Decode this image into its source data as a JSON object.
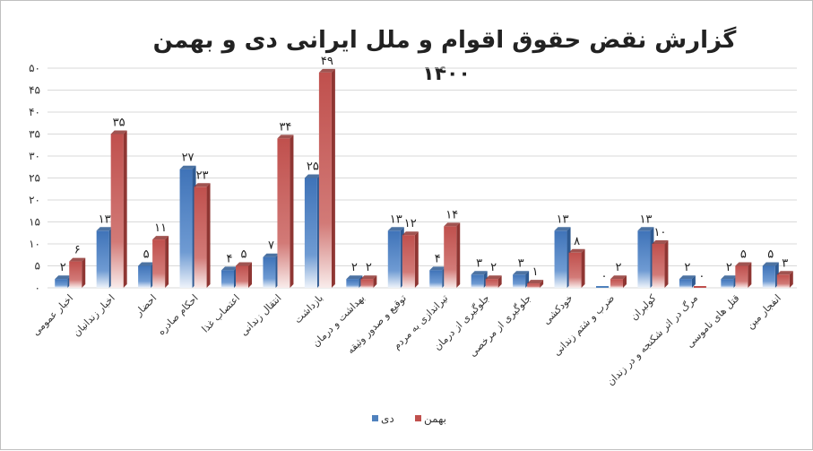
{
  "chart_data": {
    "type": "bar",
    "title": "گزارش نقض حقوق اقوام و ملل ایرانی دی و بهمن",
    "subtitle": "۱۴۰۰",
    "ylim": [
      0,
      50
    ],
    "yticks": [
      "۰",
      "۵",
      "۱۰",
      "۱۵",
      "۲۰",
      "۲۵",
      "۳۰",
      "۳۵",
      "۴۰",
      "۴۵",
      "۵۰"
    ],
    "grid": true,
    "legend_position": "bottom",
    "categories": [
      "اخبار عمومی",
      "اخبار زندانیان",
      "احضار",
      "احکام صادره",
      "اعتصاب غذا",
      "انتقال زندانی",
      "بازداشت",
      "بهداشت و درمان",
      "توقیع و صدور وثیقه",
      "تیراندازی به مردم",
      "جلوگیری از درمان",
      "جلوگیری از مرخصی",
      "خودکشی",
      "ضرب و شتم زندانی",
      "کولبران",
      "مرگ در اثر شکنجه و در زندان",
      "قتل های ناموسی",
      "انفجار مین"
    ],
    "series": [
      {
        "name": "دی",
        "color": "#4f81bd",
        "values": [
          2,
          13,
          5,
          27,
          4,
          7,
          25,
          2,
          13,
          4,
          3,
          3,
          13,
          0,
          13,
          2,
          2,
          5
        ],
        "labels": [
          "۲",
          "۱۳",
          "۵",
          "۲۷",
          "۴",
          "۷",
          "۲۵",
          "۲",
          "۱۳",
          "۴",
          "۳",
          "۳",
          "۱۳",
          "۰",
          "۱۳",
          "۲",
          "۲",
          "۵"
        ]
      },
      {
        "name": "بهمن",
        "color": "#c0504d",
        "values": [
          6,
          35,
          11,
          23,
          5,
          34,
          49,
          2,
          12,
          14,
          2,
          1,
          8,
          2,
          10,
          0,
          5,
          3
        ],
        "labels": [
          "۶",
          "۳۵",
          "۱۱",
          "۲۳",
          "۵",
          "۳۴",
          "۴۹",
          "۲",
          "۱۲",
          "۱۴",
          "۲",
          "۱",
          "۸",
          "۲",
          "۱۰",
          "۰",
          "۵",
          "۳"
        ]
      }
    ]
  }
}
